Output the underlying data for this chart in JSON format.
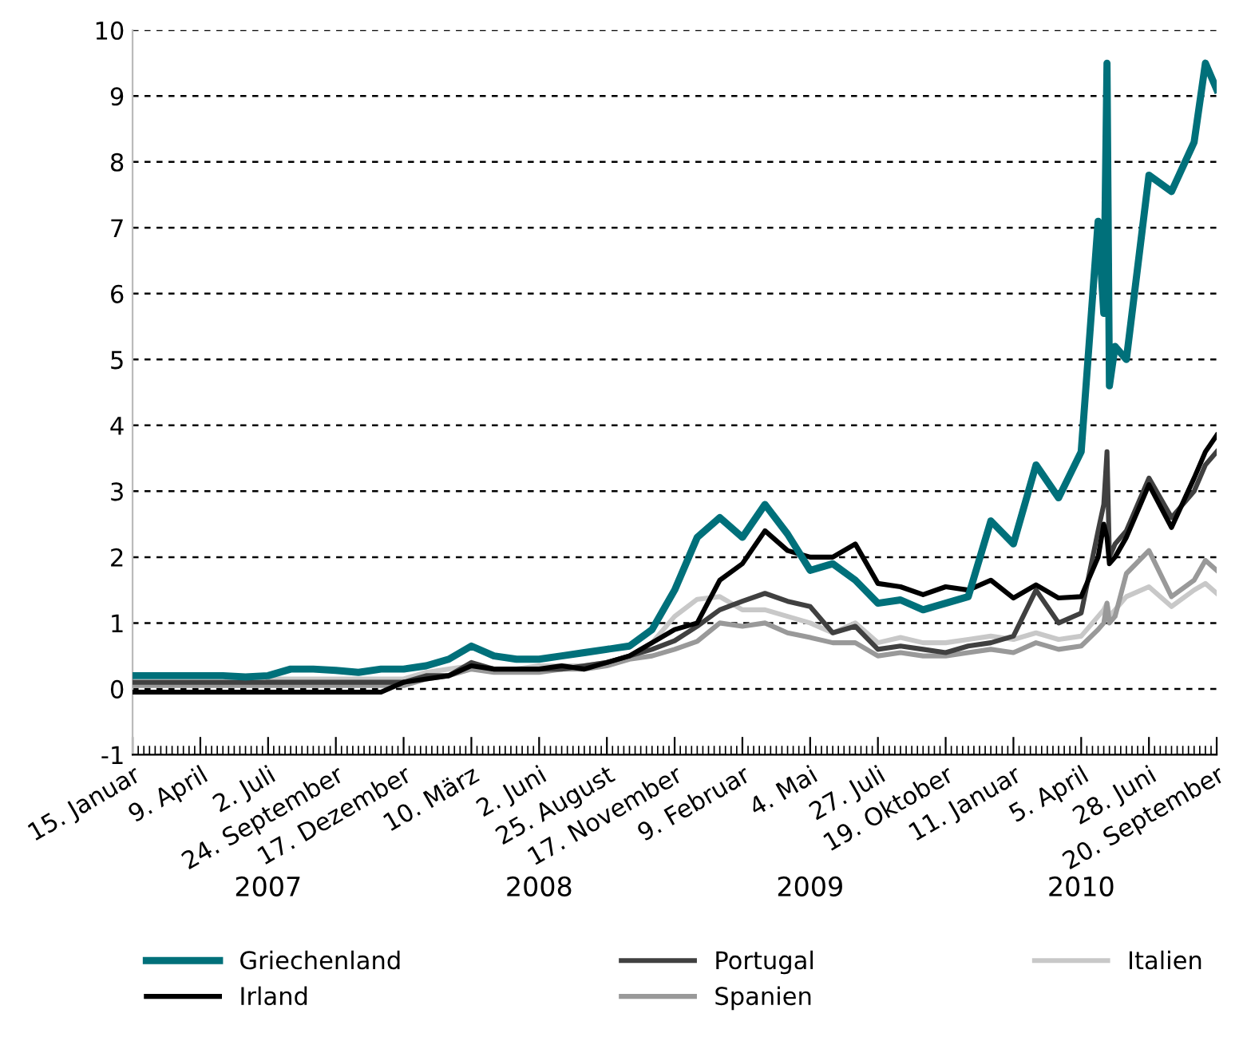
{
  "chart_data": {
    "type": "line",
    "x": [
      "2007-01-15",
      "2007-02-12",
      "2007-03-12",
      "2007-04-09",
      "2007-05-07",
      "2007-06-04",
      "2007-07-02",
      "2007-07-30",
      "2007-08-27",
      "2007-09-24",
      "2007-10-22",
      "2007-11-19",
      "2007-12-17",
      "2008-01-14",
      "2008-02-11",
      "2008-03-10",
      "2008-04-07",
      "2008-05-05",
      "2008-06-02",
      "2008-06-30",
      "2008-07-28",
      "2008-08-25",
      "2008-09-22",
      "2008-10-20",
      "2008-11-17",
      "2008-12-15",
      "2009-01-12",
      "2009-02-09",
      "2009-03-09",
      "2009-04-06",
      "2009-05-04",
      "2009-06-01",
      "2009-06-29",
      "2009-07-27",
      "2009-08-24",
      "2009-09-21",
      "2009-10-19",
      "2009-11-16",
      "2009-12-14",
      "2010-01-11",
      "2010-02-08",
      "2010-03-08",
      "2010-04-05",
      "2010-04-26",
      "2010-05-03",
      "2010-05-07",
      "2010-05-10",
      "2010-05-17",
      "2010-05-31",
      "2010-06-28",
      "2010-07-26",
      "2010-08-23",
      "2010-09-06",
      "2010-09-20"
    ],
    "series": [
      {
        "name": "Griechenland",
        "color": "#00707a",
        "values": [
          0.2,
          0.2,
          0.2,
          0.2,
          0.2,
          0.18,
          0.2,
          0.3,
          0.3,
          0.28,
          0.25,
          0.3,
          0.3,
          0.35,
          0.45,
          0.65,
          0.5,
          0.45,
          0.45,
          0.5,
          0.55,
          0.6,
          0.65,
          0.9,
          1.5,
          2.3,
          2.6,
          2.3,
          2.8,
          2.35,
          1.8,
          1.9,
          1.65,
          1.3,
          1.35,
          1.2,
          1.3,
          1.4,
          2.55,
          2.2,
          3.4,
          2.9,
          3.6,
          7.1,
          5.7,
          9.5,
          4.6,
          5.2,
          5.0,
          7.8,
          7.55,
          8.3,
          9.5,
          9.1
        ]
      },
      {
        "name": "Irland",
        "color": "#000000",
        "values": [
          -0.05,
          -0.05,
          -0.05,
          -0.05,
          -0.05,
          -0.05,
          -0.05,
          -0.05,
          -0.05,
          -0.05,
          -0.05,
          -0.05,
          0.1,
          0.15,
          0.2,
          0.35,
          0.3,
          0.3,
          0.3,
          0.35,
          0.3,
          0.4,
          0.5,
          0.7,
          0.9,
          1.0,
          1.65,
          1.9,
          2.4,
          2.1,
          2.0,
          2.0,
          2.2,
          1.6,
          1.55,
          1.43,
          1.55,
          1.5,
          1.65,
          1.38,
          1.58,
          1.38,
          1.4,
          2.0,
          2.5,
          2.3,
          1.9,
          2.0,
          2.3,
          3.1,
          2.45,
          3.2,
          3.6,
          3.85
        ]
      },
      {
        "name": "Portugal",
        "color": "#404040",
        "values": [
          0.1,
          0.1,
          0.1,
          0.1,
          0.1,
          0.1,
          0.1,
          0.1,
          0.1,
          0.1,
          0.1,
          0.1,
          0.1,
          0.2,
          0.2,
          0.4,
          0.3,
          0.3,
          0.3,
          0.3,
          0.35,
          0.4,
          0.5,
          0.6,
          0.73,
          0.95,
          1.2,
          1.33,
          1.45,
          1.33,
          1.25,
          0.85,
          0.95,
          0.6,
          0.65,
          0.6,
          0.55,
          0.65,
          0.7,
          0.8,
          1.5,
          1.0,
          1.15,
          2.4,
          2.8,
          3.6,
          2.0,
          2.2,
          2.4,
          3.2,
          2.6,
          3.0,
          3.4,
          3.6
        ]
      },
      {
        "name": "Spanien",
        "color": "#999999",
        "values": [
          0.05,
          0.05,
          0.05,
          0.05,
          0.05,
          0.05,
          0.05,
          0.05,
          0.05,
          0.05,
          0.05,
          0.05,
          0.05,
          0.15,
          0.2,
          0.3,
          0.25,
          0.25,
          0.25,
          0.3,
          0.3,
          0.35,
          0.45,
          0.5,
          0.6,
          0.72,
          1.0,
          0.95,
          1.0,
          0.85,
          0.78,
          0.7,
          0.7,
          0.5,
          0.55,
          0.5,
          0.5,
          0.55,
          0.6,
          0.55,
          0.7,
          0.6,
          0.65,
          0.9,
          1.0,
          1.3,
          1.0,
          1.1,
          1.75,
          2.1,
          1.4,
          1.65,
          1.95,
          1.8
        ]
      },
      {
        "name": "Italien",
        "color": "#c8c8c8",
        "values": [
          null,
          null,
          null,
          null,
          null,
          null,
          0.15,
          0.15,
          0.15,
          0.15,
          0.15,
          0.15,
          0.15,
          0.25,
          0.3,
          0.35,
          0.3,
          0.3,
          0.35,
          0.35,
          0.35,
          0.4,
          0.5,
          0.7,
          1.1,
          1.36,
          1.4,
          1.2,
          1.2,
          1.1,
          1.0,
          0.85,
          1.0,
          0.7,
          0.78,
          0.7,
          0.7,
          0.75,
          0.8,
          0.75,
          0.85,
          0.75,
          0.8,
          1.1,
          1.2,
          1.3,
          1.1,
          1.2,
          1.4,
          1.55,
          1.25,
          1.5,
          1.6,
          1.45
        ]
      }
    ],
    "xlim": [
      "2007-01-15",
      "2010-09-20"
    ],
    "xticks": [
      {
        "value": "2007-01-15",
        "label": "15. Januar"
      },
      {
        "value": "2007-04-09",
        "label": "9. April"
      },
      {
        "value": "2007-07-02",
        "label": "2. Juli"
      },
      {
        "value": "2007-09-24",
        "label": "24. September"
      },
      {
        "value": "2007-12-17",
        "label": "17. Dezember"
      },
      {
        "value": "2008-03-10",
        "label": "10. März"
      },
      {
        "value": "2008-06-02",
        "label": "2. Juni"
      },
      {
        "value": "2008-08-25",
        "label": "25. August"
      },
      {
        "value": "2008-11-17",
        "label": "17. November"
      },
      {
        "value": "2009-02-09",
        "label": "9. Februar"
      },
      {
        "value": "2009-05-04",
        "label": "4. Mai"
      },
      {
        "value": "2009-07-27",
        "label": "27. Juli"
      },
      {
        "value": "2009-10-19",
        "label": "19. Oktober"
      },
      {
        "value": "2010-01-11",
        "label": "11. Januar"
      },
      {
        "value": "2010-04-05",
        "label": "5. April"
      },
      {
        "value": "2010-06-28",
        "label": "28. Juni"
      },
      {
        "value": "2010-09-20",
        "label": "20. September"
      }
    ],
    "ylim": [
      -1,
      10
    ],
    "yticks": [
      -1,
      0,
      1,
      2,
      3,
      4,
      5,
      6,
      7,
      8,
      9,
      10
    ],
    "annotations": [
      "2007",
      "2008",
      "2009",
      "2010"
    ],
    "grid": "y",
    "legend": "bottom",
    "line_style": "solid",
    "marker": "none"
  }
}
